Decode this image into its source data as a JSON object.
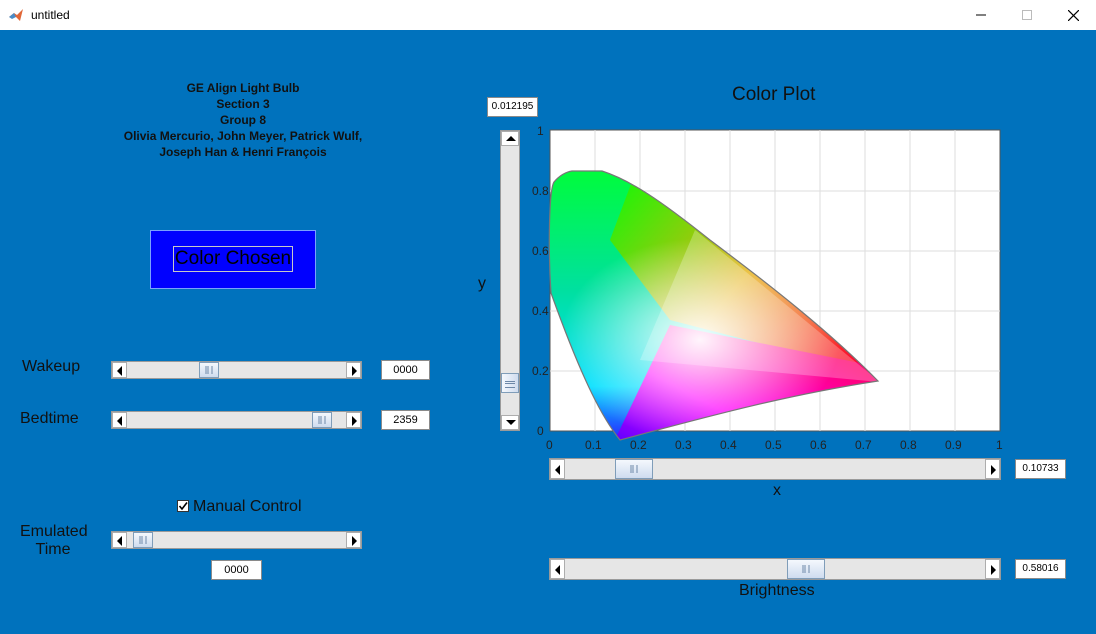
{
  "window": {
    "title": "untitled"
  },
  "credits": {
    "line1": "GE Align Light Bulb",
    "line2": "Section 3",
    "line3": "Group 8",
    "line4": "Olivia Mercurio, John Meyer, Patrick Wulf,",
    "line5": "Joseph Han & Henri François"
  },
  "color_chosen": {
    "label": "Color Chosen",
    "swatch": "#0000ff"
  },
  "wakeup": {
    "label": "Wakeup",
    "value": "0000",
    "fraction": 0.36
  },
  "bedtime": {
    "label": "Bedtime",
    "value": "2359",
    "fraction": 0.93
  },
  "manual_control": {
    "label": "Manual Control",
    "checked": true
  },
  "emulated_time": {
    "label_line1": "Emulated",
    "label_line2": "Time",
    "value": "0000",
    "fraction": 0.03
  },
  "plot": {
    "title": "Color Plot",
    "xlabel": "x",
    "ylabel": "y",
    "x_ticks": [
      "0",
      "0.1",
      "0.2",
      "0.3",
      "0.4",
      "0.5",
      "0.6",
      "0.7",
      "0.8",
      "0.9",
      "1"
    ],
    "y_ticks": [
      "0",
      "0.2",
      "0.4",
      "0.6",
      "0.8",
      "1"
    ]
  },
  "y_slider": {
    "value": "0.012195",
    "fraction": 0.09
  },
  "x_slider": {
    "value": "0.10733",
    "fraction": 0.13
  },
  "brightness": {
    "label": "Brightness",
    "value": "0.58016",
    "fraction": 0.58
  },
  "colors": {
    "background": "#0072bd",
    "swatch": "#0000ff"
  }
}
